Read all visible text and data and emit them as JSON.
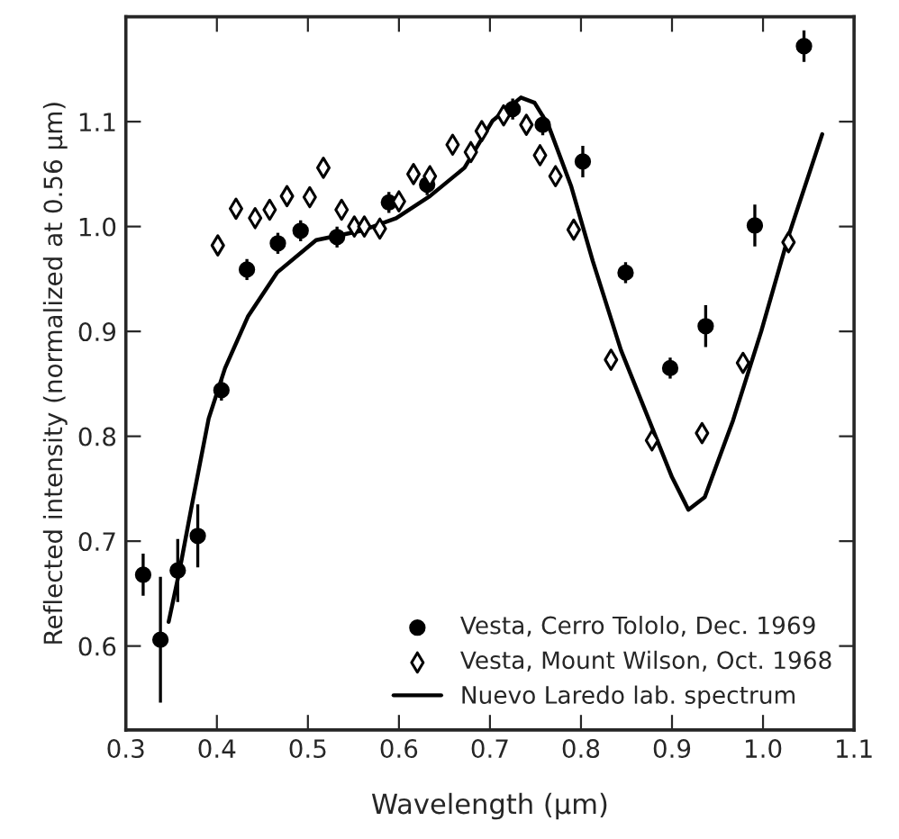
{
  "chart_data": {
    "type": "scatter",
    "xlabel": "Wavelength (μm)",
    "ylabel": "Reflected intensity (normalized at 0.56 μm)",
    "xlim": [
      0.3,
      1.1
    ],
    "ylim": [
      0.52,
      1.2
    ],
    "xticks": [
      0.3,
      0.4,
      0.5,
      0.6,
      0.7,
      0.8,
      0.9,
      {
        "value": 1.0,
        "label": "1.0"
      },
      1.1
    ],
    "yticks": [
      0.6,
      0.7,
      0.8,
      0.9,
      {
        "value": 1.0,
        "label": "1.0"
      },
      1.1
    ],
    "legend": "bottom right",
    "series": [
      {
        "name": "Vesta, Cerro Tololo, Dec. 1969",
        "color": "#000000",
        "marker": "circle",
        "x": [
          0.319,
          0.338,
          0.357,
          0.379,
          0.405,
          0.433,
          0.467,
          0.492,
          0.532,
          0.589,
          0.631,
          0.725,
          0.758,
          0.802,
          0.849,
          0.898,
          0.937,
          0.991,
          1.045
        ],
        "values": [
          0.668,
          0.606,
          0.672,
          0.705,
          0.844,
          0.959,
          0.984,
          0.996,
          0.99,
          1.023,
          1.04,
          1.112,
          1.097,
          1.062,
          0.956,
          0.865,
          0.905,
          1.001,
          1.172
        ],
        "errors": [
          0.02,
          0.06,
          0.03,
          0.03,
          0.01,
          0.01,
          0.01,
          0.01,
          0.01,
          0.01,
          0.01,
          0.01,
          0.01,
          0.015,
          0.01,
          0.01,
          0.02,
          0.02,
          0.015
        ]
      },
      {
        "name": "Vesta, Mount Wilson, Oct. 1968",
        "color": "#000000",
        "marker": "diamond",
        "x": [
          0.401,
          0.421,
          0.442,
          0.458,
          0.477,
          0.502,
          0.517,
          0.537,
          0.551,
          0.562,
          0.579,
          0.6,
          0.616,
          0.634,
          0.659,
          0.679,
          0.691,
          0.715,
          0.74,
          0.755,
          0.772,
          0.792,
          0.833,
          0.878,
          0.933,
          0.978,
          1.028
        ],
        "values": [
          0.982,
          1.017,
          1.008,
          1.016,
          1.029,
          1.028,
          1.056,
          1.016,
          1.0,
          1.0,
          0.998,
          1.024,
          1.05,
          1.048,
          1.078,
          1.071,
          1.091,
          1.106,
          1.097,
          1.068,
          1.048,
          0.997,
          0.873,
          0.796,
          0.803,
          0.87,
          0.985
        ]
      },
      {
        "name": "Nuevo Laredo lab. spectrum",
        "type": "line",
        "color": "#000000",
        "marker": "none",
        "line_style": "solid",
        "x": [
          0.347,
          0.359,
          0.372,
          0.391,
          0.409,
          0.434,
          0.466,
          0.509,
          0.559,
          0.597,
          0.634,
          0.672,
          0.703,
          0.734,
          0.749,
          0.764,
          0.789,
          0.813,
          0.844,
          0.875,
          0.9,
          0.918,
          0.936,
          0.967,
          0.998,
          1.028,
          1.065
        ],
        "values": [
          0.623,
          0.672,
          0.732,
          0.817,
          0.865,
          0.914,
          0.956,
          0.987,
          0.996,
          1.008,
          1.029,
          1.056,
          1.101,
          1.123,
          1.118,
          1.097,
          1.039,
          0.967,
          0.882,
          0.815,
          0.761,
          0.73,
          0.742,
          0.815,
          0.9,
          0.991,
          1.088
        ]
      }
    ]
  }
}
